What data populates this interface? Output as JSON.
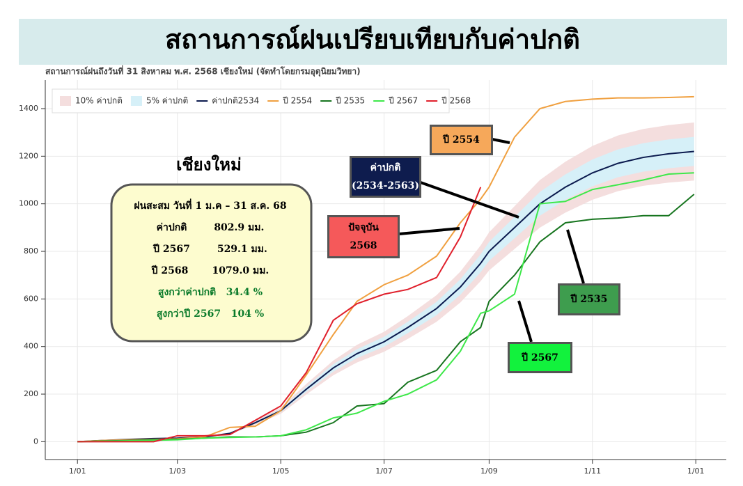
{
  "chart_data": {
    "type": "line",
    "title": "สถานการณ์ฝนเปรียบเทียบกับค่าปกติ",
    "subtitle": "สถานการณ์ฝนถึงวันที่ 31 สิงหาคม พ.ศ. 2568 เชียงใหม่ (จัดทำโดยกรมอุตุนิยมวิทยา)",
    "x": [
      0,
      15,
      31,
      45,
      59,
      75,
      90,
      105,
      120,
      135,
      151,
      165,
      181,
      195,
      212,
      226,
      238,
      243,
      258,
      273,
      288,
      304,
      319,
      334,
      349,
      364
    ],
    "xlim": [
      -19,
      383
    ],
    "xticks": [
      {
        "value": 0,
        "label": "1/01"
      },
      {
        "value": 59,
        "label": "1/03"
      },
      {
        "value": 120,
        "label": "1/05"
      },
      {
        "value": 181,
        "label": "1/07"
      },
      {
        "value": 243,
        "label": "1/09"
      },
      {
        "value": 304,
        "label": "1/11"
      },
      {
        "value": 365,
        "label": "1/01"
      }
    ],
    "ylim": [
      -75,
      1520
    ],
    "yticks": [
      0,
      200,
      400,
      600,
      800,
      1000,
      1200,
      1400
    ],
    "grid": true,
    "legend": "top-left",
    "series": [
      {
        "name": "10% ค่าปกติ",
        "kind": "band",
        "color": "#f4dede",
        "low": [
          0,
          4.5,
          9,
          11.7,
          13.5,
          18,
          31.5,
          72,
          117,
          198,
          279,
          333,
          378,
          432,
          504,
          585,
          675,
          720,
          810,
          900,
          963,
          1017,
          1053,
          1075.5,
          1089,
          1098
        ],
        "high": [
          0,
          5.5,
          11,
          14.3,
          16.5,
          22,
          38.5,
          88,
          143,
          242,
          341,
          407,
          462,
          528,
          616,
          715,
          825,
          880,
          990,
          1100,
          1177,
          1243,
          1287,
          1314.5,
          1331,
          1342
        ]
      },
      {
        "name": "5% ค่าปกติ",
        "kind": "band",
        "color": "#d6f0f8",
        "low": [
          0,
          4.75,
          9.5,
          12.35,
          14.25,
          19,
          33.25,
          76,
          123.5,
          209,
          294.5,
          351.5,
          399,
          456,
          532,
          617.5,
          712.5,
          760,
          855,
          950,
          1016.5,
          1073.5,
          1111.5,
          1135.25,
          1149.5,
          1159
        ],
        "high": [
          0,
          5.25,
          10.5,
          13.65,
          15.75,
          21,
          36.75,
          84,
          136.5,
          231,
          325.5,
          388.5,
          441,
          504,
          588,
          682.5,
          787.5,
          840,
          945,
          1050,
          1123.5,
          1186.5,
          1228.5,
          1254.75,
          1270.5,
          1281
        ]
      },
      {
        "name": "ค่าปกติ2534",
        "color": "#0b1a4e",
        "values": [
          0,
          5,
          10,
          13,
          15,
          20,
          35,
          80,
          130,
          220,
          310,
          370,
          420,
          480,
          560,
          650,
          750,
          800,
          900,
          1000,
          1070,
          1130,
          1170,
          1195,
          1210,
          1220
        ]
      },
      {
        "name": "ปี 2554",
        "color": "#f0a040",
        "values": [
          0,
          5,
          8,
          10,
          12,
          20,
          60,
          65,
          130,
          280,
          450,
          590,
          660,
          700,
          780,
          920,
          1020,
          1070,
          1280,
          1400,
          1430,
          1440,
          1445,
          1445,
          1447,
          1450
        ]
      },
      {
        "name": "ปี 2535",
        "color": "#17751f",
        "values": [
          0,
          3,
          5,
          8,
          10,
          15,
          20,
          20,
          25,
          40,
          80,
          150,
          160,
          250,
          300,
          420,
          480,
          590,
          700,
          840,
          920,
          935,
          940,
          950,
          950,
          1040
        ]
      },
      {
        "name": "ปี 2567",
        "color": "#3ee84a",
        "values": [
          0,
          2,
          4,
          6,
          8,
          15,
          18,
          20,
          25,
          50,
          100,
          120,
          170,
          200,
          260,
          380,
          540,
          550,
          620,
          1000,
          1010,
          1060,
          1080,
          1100,
          1125,
          1130
        ]
      },
      {
        "name": "ปี 2568",
        "color": "#e0202c",
        "values": [
          0,
          0,
          0,
          0,
          25,
          25,
          30,
          90,
          150,
          290,
          510,
          580,
          620,
          640,
          690,
          860,
          1070,
          null,
          null,
          null,
          null,
          null,
          null,
          null,
          null,
          null
        ]
      }
    ],
    "info_box": {
      "title": "เชียงใหม่",
      "lines": [
        "ฝนสะสม วันที่ 1 ม.ค – 31 ส.ค. 68",
        "ค่าปกติ        802.9 มม.",
        "ปี 2567        529.1 มม.",
        "ปี 2568       1079.0 มม.",
        "สูงกว่าค่าปกติ   34.4 %",
        "สูงกว่าปี 2567   104 %"
      ]
    },
    "callouts": [
      {
        "lines": [
          "ปี 2554"
        ]
      },
      {
        "lines": [
          "ค่าปกติ",
          "(2534-2563)"
        ]
      },
      {
        "lines": [
          "ปัจจุบัน",
          "2568"
        ]
      },
      {
        "lines": [
          "ปี 2535"
        ]
      },
      {
        "lines": [
          "ปี 2567"
        ]
      }
    ]
  }
}
